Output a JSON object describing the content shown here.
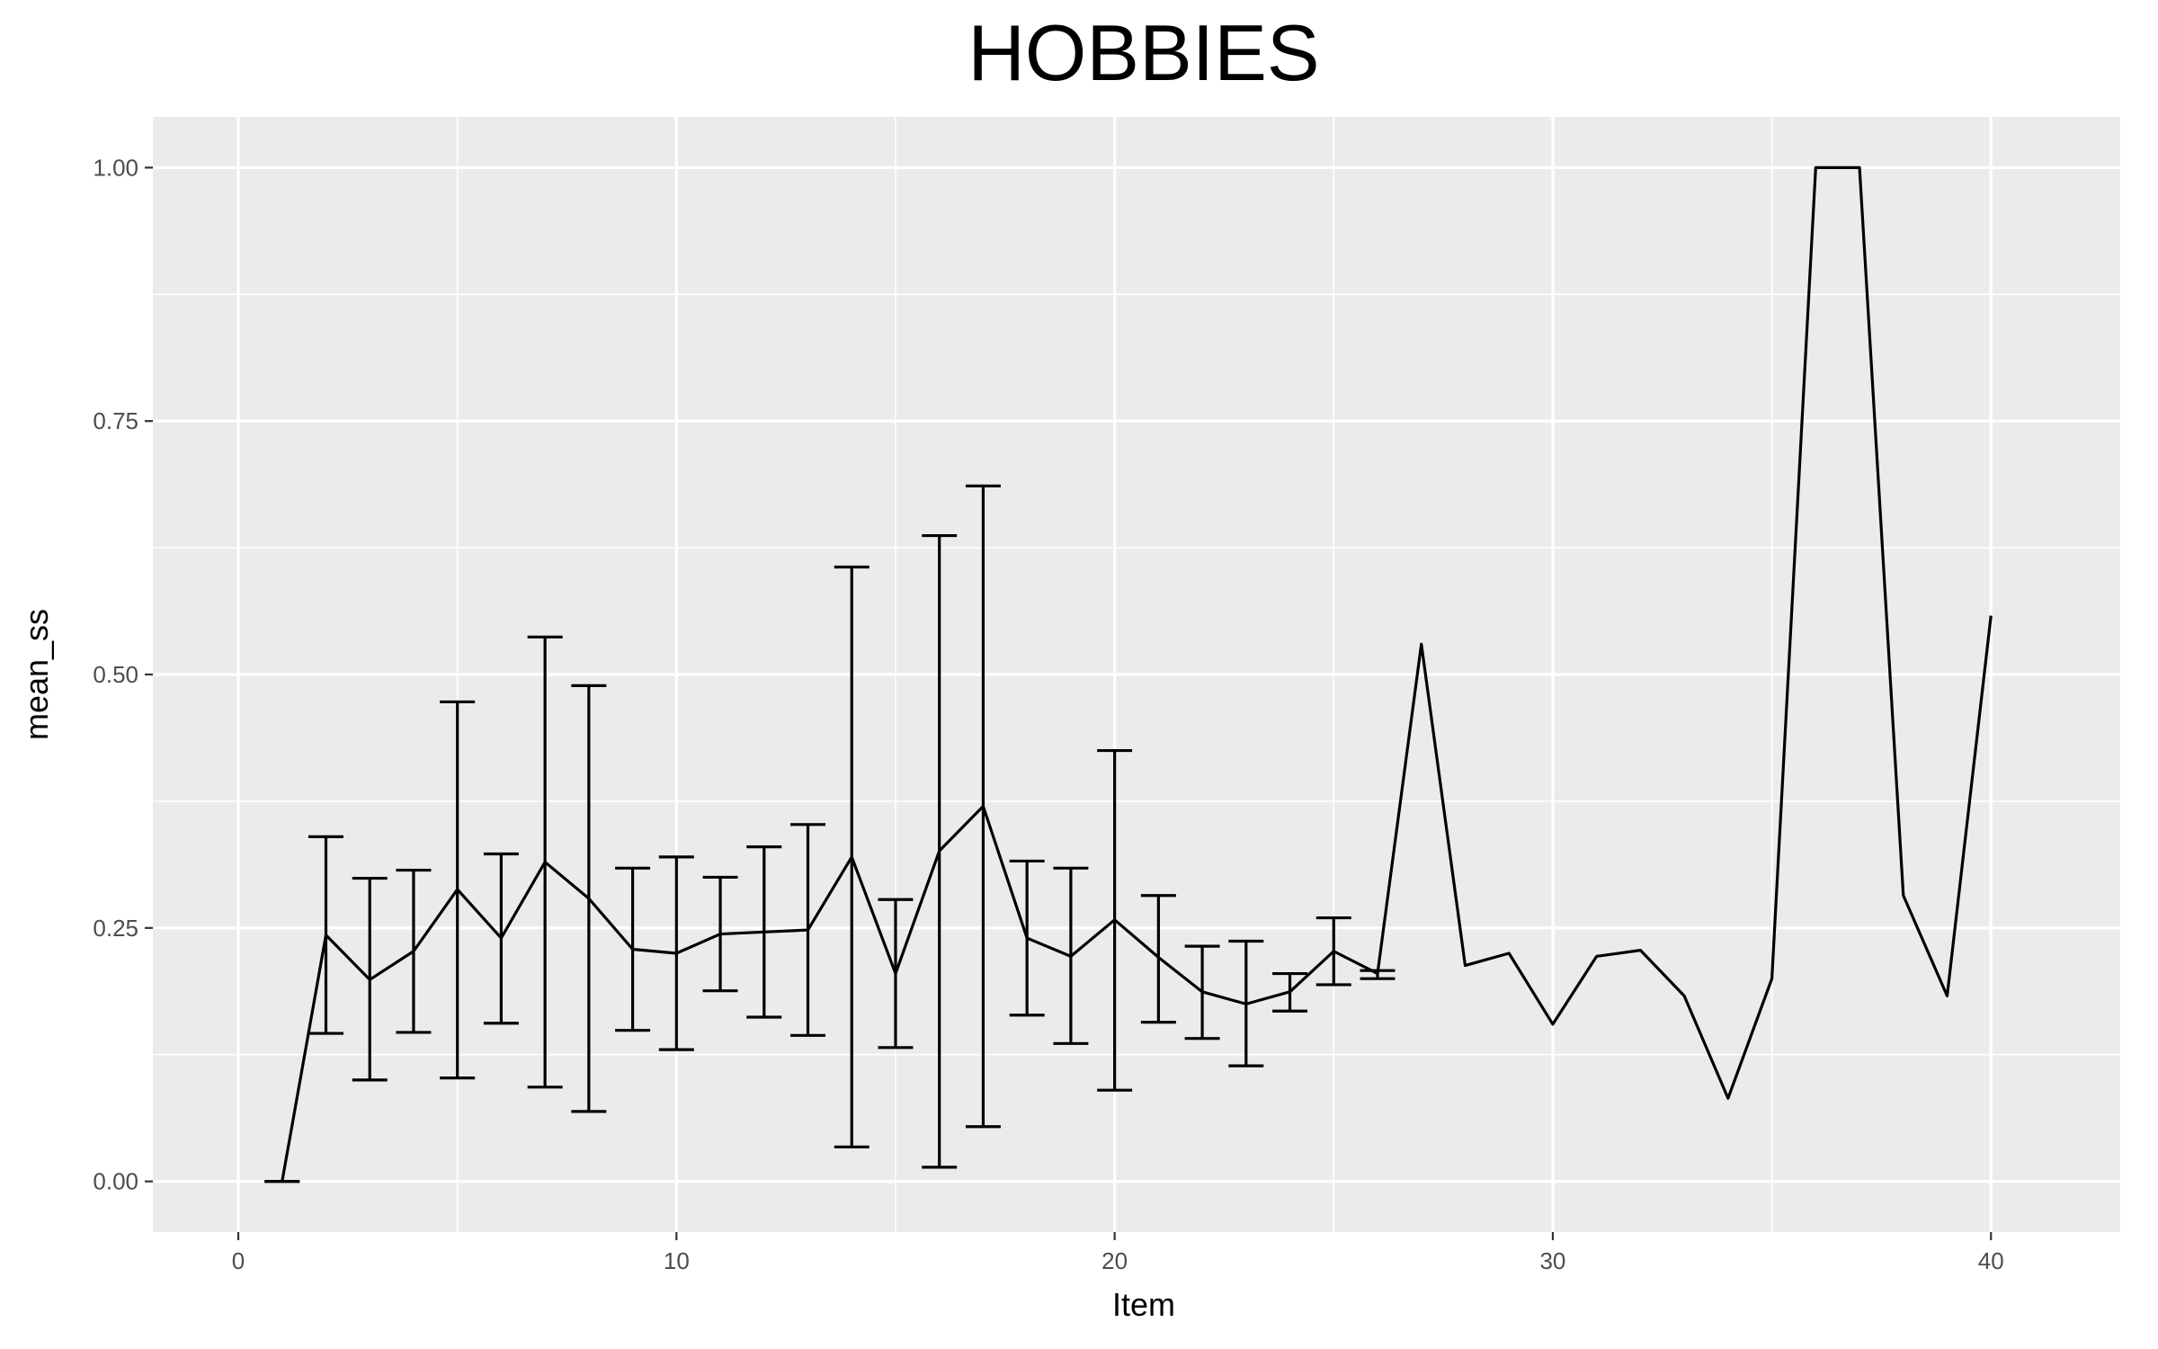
{
  "chart_data": {
    "type": "line",
    "title": "HOBBIES",
    "xlabel": "Item",
    "ylabel": "mean_ss",
    "xlim": [
      -1.95,
      42.95
    ],
    "ylim": [
      -0.05,
      1.05
    ],
    "x_ticks": [
      0,
      10,
      20,
      30,
      40
    ],
    "x_tick_labels": [
      "0",
      "10",
      "20",
      "30",
      "40"
    ],
    "y_ticks": [
      0,
      0.25,
      0.5,
      0.75,
      1.0
    ],
    "y_tick_labels": [
      "0.00",
      "0.25",
      "0.50",
      "0.75",
      "1.00"
    ],
    "grid": true,
    "background": "#ebebeb",
    "line_color": "#000000",
    "series": [
      {
        "x": [
          1,
          2,
          3,
          4,
          5,
          6,
          7,
          8,
          9,
          10,
          11,
          12,
          13,
          14,
          15,
          16,
          17,
          18,
          19,
          20,
          21,
          22,
          23,
          24,
          25,
          26,
          27,
          28,
          29,
          30,
          31,
          32,
          33,
          34,
          35,
          36,
          37,
          38,
          39,
          40
        ],
        "values": [
          0.0,
          0.243,
          0.199,
          0.227,
          0.288,
          0.24,
          0.315,
          0.279,
          0.229,
          0.225,
          0.244,
          0.246,
          0.248,
          0.32,
          0.205,
          0.326,
          0.37,
          0.24,
          0.222,
          0.258,
          0.221,
          0.187,
          0.175,
          0.187,
          0.227,
          0.205,
          0.53,
          0.213,
          0.225,
          0.155,
          0.222,
          0.228,
          0.183,
          0.082,
          0.2,
          1.0,
          1.0,
          0.282,
          0.183,
          0.558
        ]
      }
    ],
    "error_bars": [
      {
        "x": 1,
        "low": 0.0,
        "high": 0.0
      },
      {
        "x": 2,
        "low": 0.146,
        "high": 0.34
      },
      {
        "x": 3,
        "low": 0.1,
        "high": 0.299
      },
      {
        "x": 4,
        "low": 0.147,
        "high": 0.307
      },
      {
        "x": 5,
        "low": 0.102,
        "high": 0.473
      },
      {
        "x": 6,
        "low": 0.156,
        "high": 0.323
      },
      {
        "x": 7,
        "low": 0.093,
        "high": 0.537
      },
      {
        "x": 8,
        "low": 0.069,
        "high": 0.489
      },
      {
        "x": 9,
        "low": 0.149,
        "high": 0.309
      },
      {
        "x": 10,
        "low": 0.13,
        "high": 0.32
      },
      {
        "x": 11,
        "low": 0.188,
        "high": 0.3
      },
      {
        "x": 12,
        "low": 0.162,
        "high": 0.33
      },
      {
        "x": 13,
        "low": 0.144,
        "high": 0.352
      },
      {
        "x": 14,
        "low": 0.034,
        "high": 0.606
      },
      {
        "x": 15,
        "low": 0.132,
        "high": 0.278
      },
      {
        "x": 16,
        "low": 0.014,
        "high": 0.637
      },
      {
        "x": 17,
        "low": 0.054,
        "high": 0.686
      },
      {
        "x": 18,
        "low": 0.164,
        "high": 0.316
      },
      {
        "x": 19,
        "low": 0.136,
        "high": 0.309
      },
      {
        "x": 20,
        "low": 0.09,
        "high": 0.425
      },
      {
        "x": 21,
        "low": 0.157,
        "high": 0.282
      },
      {
        "x": 22,
        "low": 0.141,
        "high": 0.232
      },
      {
        "x": 23,
        "low": 0.114,
        "high": 0.237
      },
      {
        "x": 24,
        "low": 0.168,
        "high": 0.205
      },
      {
        "x": 25,
        "low": 0.194,
        "high": 0.26
      },
      {
        "x": 26,
        "low": 0.2,
        "high": 0.208
      }
    ]
  }
}
